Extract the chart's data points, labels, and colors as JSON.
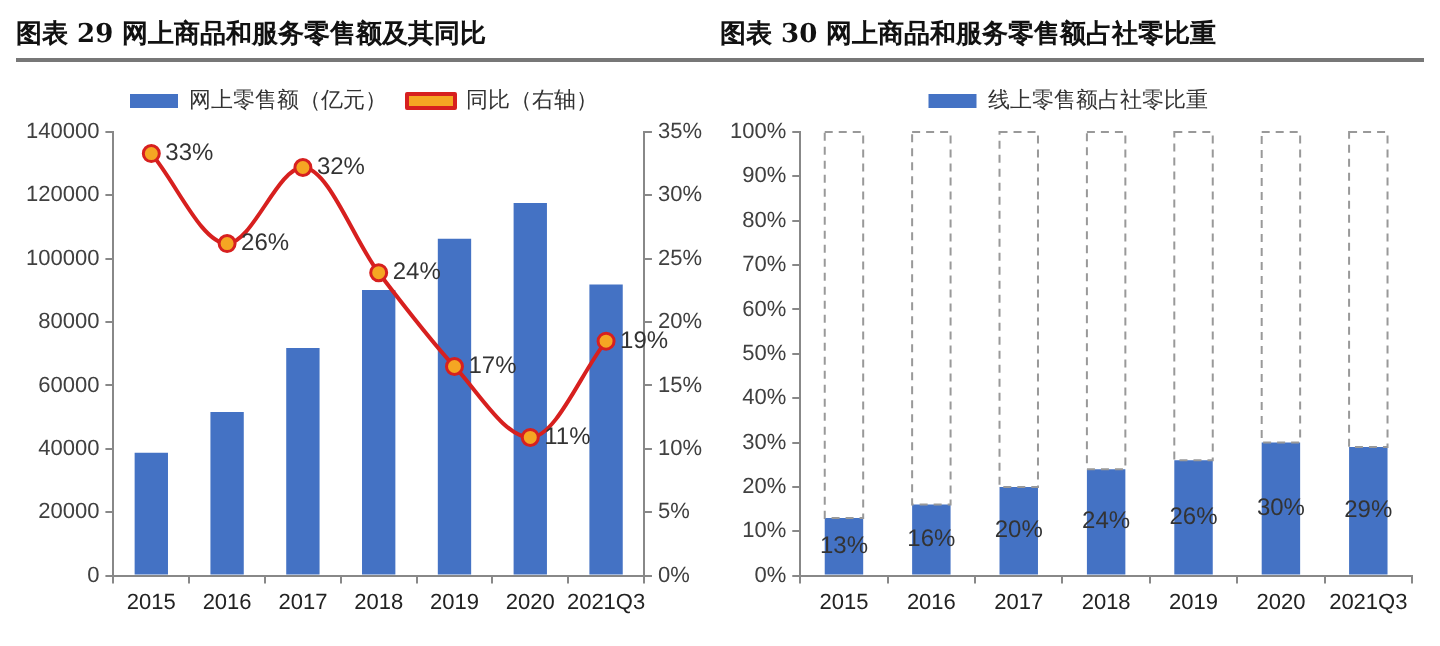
{
  "chart_data": [
    {
      "type": "bar",
      "title": "图表 29  网上商品和服务零售额及其同比",
      "categories": [
        "2015",
        "2016",
        "2017",
        "2018",
        "2019",
        "2020",
        "2021Q3"
      ],
      "series": [
        {
          "name": "网上零售额（亿元）",
          "type": "bar",
          "color": "#4472c4",
          "values": [
            38800,
            51600,
            71800,
            90100,
            106300,
            117600,
            91900
          ]
        },
        {
          "name": "同比（右轴）",
          "type": "line",
          "axis": "y2",
          "color": "#d7201f",
          "marker": "circle",
          "values": [
            33.3,
            26.2,
            32.2,
            23.9,
            16.5,
            10.9,
            18.5
          ],
          "value_labels": [
            "33%",
            "26%",
            "32%",
            "24%",
            "17%",
            "11%",
            "19%"
          ]
        }
      ],
      "ylim": [
        0,
        140000
      ],
      "yticks": [
        0,
        20000,
        40000,
        60000,
        80000,
        100000,
        120000,
        140000
      ],
      "y2lim": [
        0,
        35
      ],
      "y2ticks": [
        {
          "value": 0,
          "label": "0%"
        },
        {
          "value": 5,
          "label": "5%"
        },
        {
          "value": 10,
          "label": "10%"
        },
        {
          "value": 15,
          "label": "15%"
        },
        {
          "value": 20,
          "label": "20%"
        },
        {
          "value": 25,
          "label": "25%"
        },
        {
          "value": 30,
          "label": "30%"
        },
        {
          "value": 35,
          "label": "35%"
        }
      ],
      "grid": false,
      "legend": "top"
    },
    {
      "type": "bar",
      "title": "图表 30  网上商品和服务零售额占社零比重",
      "categories": [
        "2015",
        "2016",
        "2017",
        "2018",
        "2019",
        "2020",
        "2021Q3"
      ],
      "stacked": true,
      "series": [
        {
          "name": "线上零售额占社零比重",
          "color": "#4472c4",
          "values": [
            13,
            16,
            20,
            24,
            26,
            30,
            29
          ],
          "value_labels": [
            "13%",
            "16%",
            "20%",
            "24%",
            "26%",
            "30%",
            "29%"
          ]
        },
        {
          "color": "#ffffff",
          "line_style": "dashed",
          "values": [
            87,
            84,
            80,
            76,
            74,
            70,
            71
          ]
        }
      ],
      "ylim": [
        0,
        100
      ],
      "yticks": [
        {
          "value": 0,
          "label": "0%"
        },
        {
          "value": 10,
          "label": "10%"
        },
        {
          "value": 20,
          "label": "20%"
        },
        {
          "value": 30,
          "label": "30%"
        },
        {
          "value": 40,
          "label": "40%"
        },
        {
          "value": 50,
          "label": "50%"
        },
        {
          "value": 60,
          "label": "60%"
        },
        {
          "value": 70,
          "label": "70%"
        },
        {
          "value": 80,
          "label": "80%"
        },
        {
          "value": 90,
          "label": "90%"
        },
        {
          "value": 100,
          "label": "100%"
        }
      ],
      "grid": false,
      "legend": "top"
    }
  ]
}
